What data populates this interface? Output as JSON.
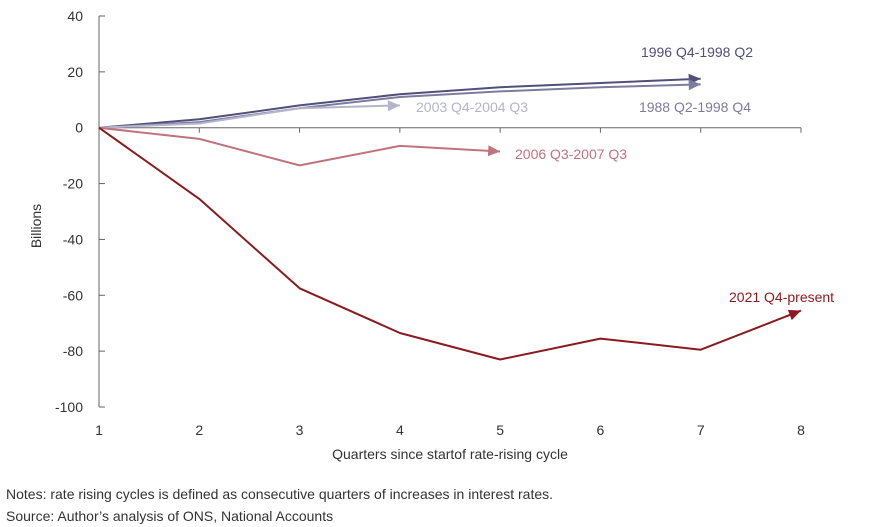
{
  "chart_data": {
    "type": "line",
    "title": "",
    "xlabel": "Quarters since startof rate-rising cycle",
    "ylabel": "Billions",
    "x": [
      1,
      2,
      3,
      4,
      5,
      6,
      7,
      8
    ],
    "xlim": [
      1,
      8
    ],
    "ylim": [
      -100,
      40
    ],
    "yticks": [
      40,
      20,
      0,
      -20,
      -40,
      -60,
      -80,
      -100
    ],
    "xticks": [
      1,
      2,
      3,
      4,
      5,
      6,
      7,
      8
    ],
    "grid": false,
    "legend": "none (direct labels at line ends)",
    "series": [
      {
        "name": "1996 Q4-1998 Q2",
        "color": "#50507a",
        "x": [
          1,
          2,
          3,
          4,
          5,
          6,
          7
        ],
        "values": [
          0,
          3,
          8,
          12,
          14.5,
          16,
          17.5
        ]
      },
      {
        "name": "1988 Q2-1998 Q4",
        "color": "#7c7c9e",
        "x": [
          1,
          2,
          3,
          4,
          5,
          6,
          7
        ],
        "values": [
          0,
          2,
          7,
          11,
          13,
          14.5,
          15.5
        ]
      },
      {
        "name": "2003 Q4-2004 Q3",
        "color": "#b4b4cc",
        "x": [
          1,
          2,
          3,
          4
        ],
        "values": [
          0,
          1.5,
          7,
          8
        ]
      },
      {
        "name": "2006 Q3-2007 Q3",
        "color": "#c0737c",
        "x": [
          1,
          2,
          3,
          4,
          5
        ],
        "values": [
          0,
          -4,
          -13.5,
          -6.5,
          -8.5
        ]
      },
      {
        "name": "2021 Q4-present",
        "color": "#8b1a1f",
        "x": [
          1,
          2,
          3,
          4,
          5,
          6,
          7,
          8
        ],
        "values": [
          0,
          -25.5,
          -57.5,
          -73.5,
          -83,
          -75.5,
          -79.5,
          -65.5
        ]
      }
    ]
  },
  "notes": {
    "line1": "Notes: rate rising cycles is defined as consecutive quarters of increases in interest rates.",
    "line2": "Source: Author’s analysis of ONS, National Accounts"
  }
}
